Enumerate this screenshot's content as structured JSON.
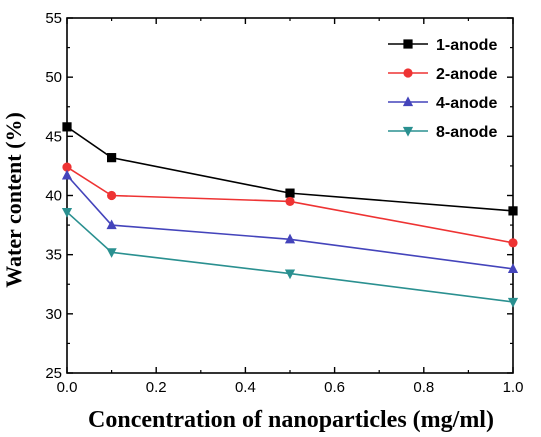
{
  "chart_data": {
    "type": "line",
    "xlabel": "Concentration of nanoparticles (mg/ml)",
    "ylabel": "Water content (%)",
    "xlim": [
      0.0,
      1.0
    ],
    "ylim": [
      25,
      55
    ],
    "xticks": [
      "0.0",
      "0.2",
      "0.4",
      "0.6",
      "0.8",
      "1.0"
    ],
    "yticks": [
      "25",
      "30",
      "35",
      "40",
      "45",
      "50",
      "55"
    ],
    "x": [
      0.0,
      0.1,
      0.5,
      1.0
    ],
    "legend_position": "top-right",
    "grid": false,
    "series": [
      {
        "name": "1-anode",
        "values": [
          45.8,
          43.2,
          40.2,
          38.7
        ],
        "color": "#000000",
        "marker": "square"
      },
      {
        "name": "2-anode",
        "values": [
          42.4,
          40.0,
          39.5,
          36.0
        ],
        "color": "#ee3333",
        "marker": "circle"
      },
      {
        "name": "4-anode",
        "values": [
          41.7,
          37.5,
          36.3,
          33.8
        ],
        "color": "#4444bb",
        "marker": "triangle-up"
      },
      {
        "name": "8-anode",
        "values": [
          38.6,
          35.2,
          33.4,
          31.0
        ],
        "color": "#2a9090",
        "marker": "triangle-down"
      }
    ]
  }
}
